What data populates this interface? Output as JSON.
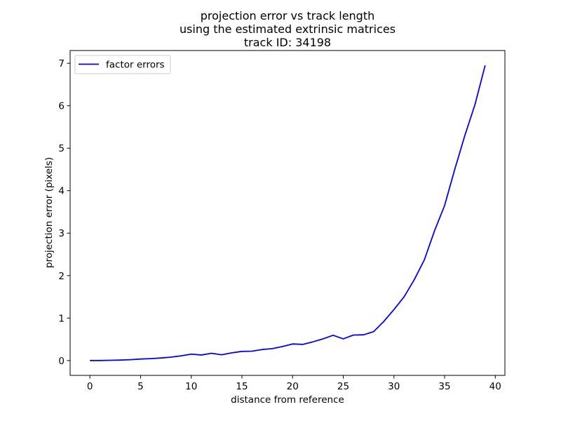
{
  "chart_data": {
    "type": "line",
    "title": [
      "projection error vs track length",
      "using the estimated extrinsic matrices",
      "track ID: 34198"
    ],
    "xlabel": "distance from reference",
    "ylabel": "projection error (pixels)",
    "xlim": [
      -1.95,
      40.95
    ],
    "ylim": [
      -0.35,
      7.3
    ],
    "xticks": [
      0,
      5,
      10,
      15,
      20,
      25,
      30,
      35,
      40
    ],
    "yticks": [
      0,
      1,
      2,
      3,
      4,
      5,
      6,
      7
    ],
    "grid": false,
    "legend_position": "top-left",
    "series": [
      {
        "name": "factor errors",
        "color": "#0000ff",
        "x": [
          0,
          1,
          2,
          3,
          4,
          5,
          6,
          7,
          8,
          9,
          10,
          11,
          12,
          13,
          14,
          15,
          16,
          17,
          18,
          19,
          20,
          21,
          22,
          23,
          24,
          25,
          26,
          27,
          28,
          29,
          30,
          31,
          32,
          33,
          34,
          35,
          36,
          37,
          38,
          39
        ],
        "y": [
          0.0,
          0.0,
          0.005,
          0.01,
          0.02,
          0.035,
          0.045,
          0.06,
          0.08,
          0.11,
          0.15,
          0.13,
          0.17,
          0.135,
          0.18,
          0.215,
          0.22,
          0.26,
          0.28,
          0.33,
          0.39,
          0.38,
          0.44,
          0.51,
          0.595,
          0.51,
          0.6,
          0.605,
          0.68,
          0.92,
          1.2,
          1.5,
          1.9,
          2.37,
          3.05,
          3.65,
          4.5,
          5.3,
          6.03,
          6.95
        ]
      }
    ]
  }
}
